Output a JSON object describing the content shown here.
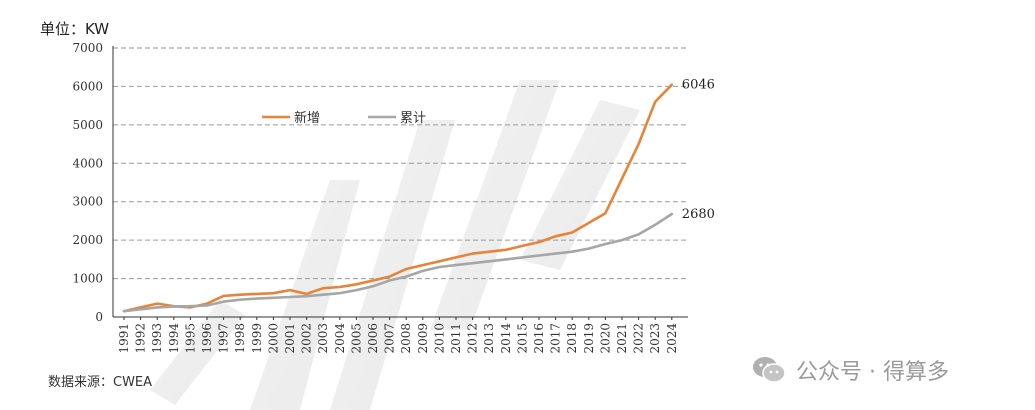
{
  "unit_label": "单位：KW",
  "source": "数据来源：CWEA",
  "watermark": "公众号 · 得算多",
  "chart_data": {
    "type": "line",
    "title": "",
    "xlabel": "",
    "ylabel": "单位：KW",
    "ylim": [
      0,
      7000
    ],
    "yticks": [
      0,
      1000,
      2000,
      3000,
      4000,
      5000,
      6000,
      7000
    ],
    "grid": true,
    "legend": "upper-left-inside",
    "values_note": "approximate, read from chart",
    "categories": [
      "1991",
      "1992",
      "1993",
      "1994",
      "1995",
      "1996",
      "1997",
      "1998",
      "1999",
      "2000",
      "2001",
      "2002",
      "2003",
      "2004",
      "2005",
      "2006",
      "2007",
      "2008",
      "2009",
      "2010",
      "2011",
      "2012",
      "2013",
      "2014",
      "2015",
      "2016",
      "2017",
      "2018",
      "2019",
      "2020",
      "2021",
      "2022",
      "2023",
      "2024"
    ],
    "series": [
      {
        "name": "新增",
        "color": "#E8833A",
        "end_label": "6046",
        "values": [
          150,
          250,
          350,
          280,
          250,
          350,
          550,
          580,
          600,
          620,
          700,
          600,
          750,
          780,
          850,
          950,
          1050,
          1250,
          1350,
          1450,
          1550,
          1650,
          1700,
          1750,
          1850,
          1950,
          2100,
          2200,
          2450,
          2700,
          3600,
          4500,
          5600,
          6046
        ]
      },
      {
        "name": "累计",
        "color": "#A6A6A6",
        "end_label": "2680",
        "values": [
          150,
          200,
          250,
          270,
          280,
          300,
          400,
          450,
          480,
          500,
          520,
          540,
          580,
          620,
          700,
          800,
          950,
          1050,
          1200,
          1300,
          1350,
          1400,
          1450,
          1500,
          1550,
          1600,
          1650,
          1700,
          1780,
          1900,
          2000,
          2150,
          2400,
          2680
        ]
      }
    ]
  }
}
